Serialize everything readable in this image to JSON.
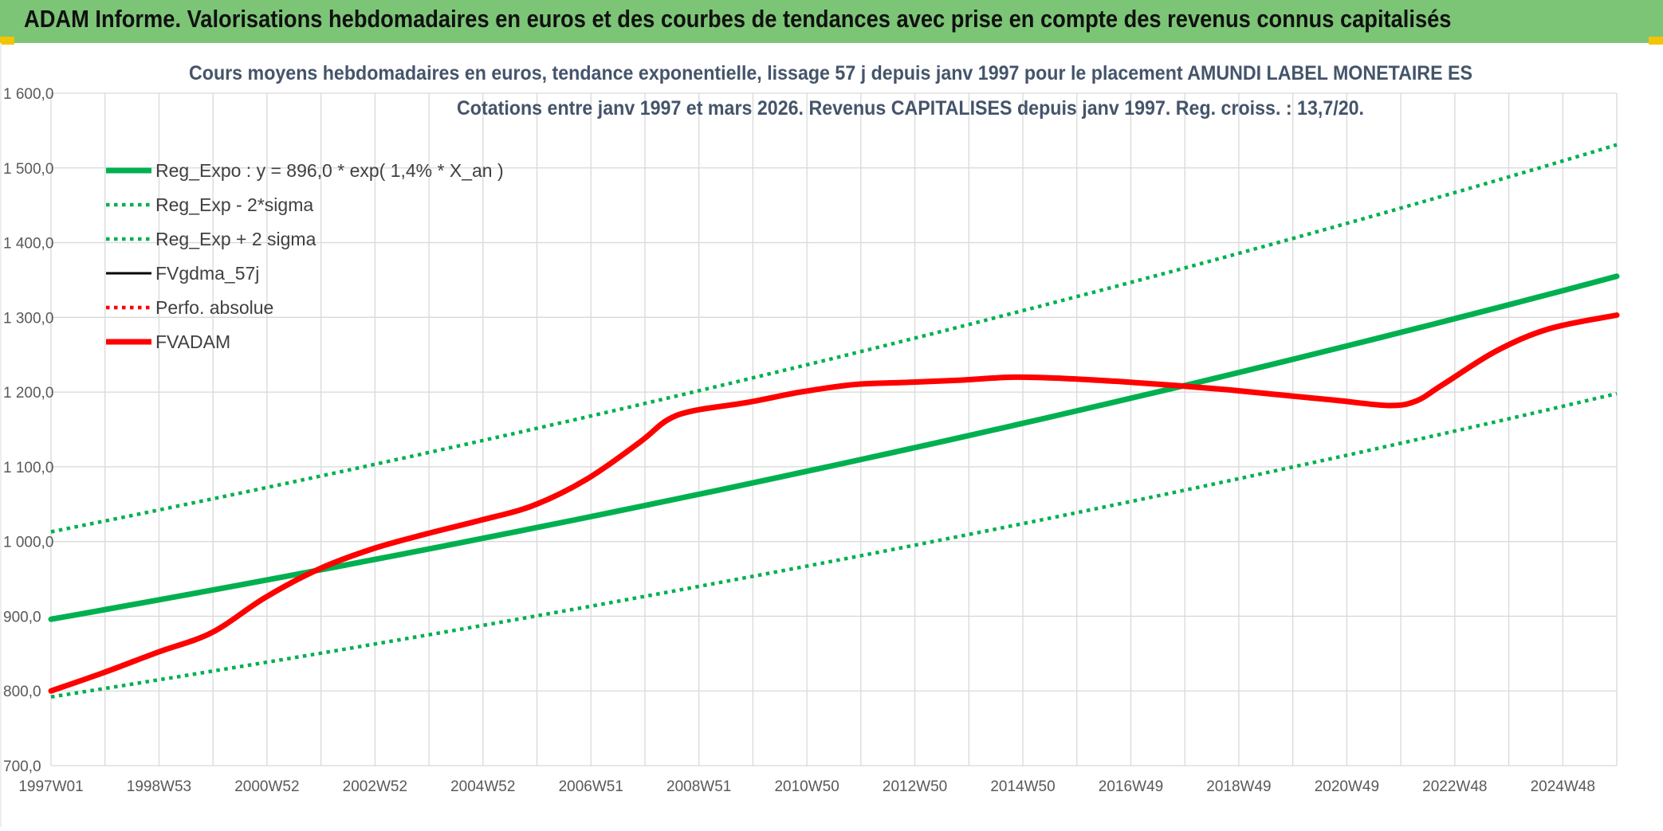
{
  "header": {
    "title": "ADAM Informe. Valorisations hebdomadaires en euros et des courbes de tendances avec prise en compte des revenus connus capitalisés"
  },
  "colors": {
    "header_bg": "#7cc576",
    "accent_corner": "#f2c500",
    "reg_expo": "#00b050",
    "fvadam": "#ff0000",
    "fvgdma": "#000000",
    "perfo": "#ff0000"
  },
  "chart_data": {
    "type": "line",
    "title": "Cours moyens hebdomadaires en euros, tendance exponentielle, lissage 57 j depuis janv 1997 pour le placement AMUNDI LABEL MONETAIRE ES",
    "subtitle": "Cotations entre janv 1997 et mars 2026. Revenus CAPITALISES depuis janv 1997. Reg. croiss. : 13,7/20.",
    "xlabel": "",
    "ylabel": "",
    "x_ticks": [
      "1997W01",
      "1998W53",
      "2000W52",
      "2002W52",
      "2004W52",
      "2006W51",
      "2008W51",
      "2010W50",
      "2012W50",
      "2014W50",
      "2016W49",
      "2018W49",
      "2020W49",
      "2022W48",
      "2024W48"
    ],
    "x_range": [
      1997.0,
      2026.25
    ],
    "ylim": [
      700,
      1600
    ],
    "y_ticks": [
      "700,0",
      "800,0",
      "900,0",
      "1 000,0",
      "1 100,0",
      "1 200,0",
      "1 300,0",
      "1 400,0",
      "1 500,0",
      "1 600,0"
    ],
    "grid": true,
    "legend_position": "top-left",
    "series": [
      {
        "name": "Reg_Expo : y = 896,0 * exp( 1,4% *  X_an )",
        "color": "#00b050",
        "style": "solid-thick",
        "x": [
          1997.0,
          2026.25
        ],
        "values": [
          896,
          1355
        ]
      },
      {
        "name": "Reg_Exp - 2*sigma",
        "color": "#00b050",
        "style": "dotted",
        "x": [
          1997.0,
          2026.25
        ],
        "values": [
          792,
          1198
        ]
      },
      {
        "name": "Reg_Exp + 2 sigma",
        "color": "#00b050",
        "style": "dotted",
        "x": [
          1997.0,
          2026.25
        ],
        "values": [
          1013,
          1531
        ]
      },
      {
        "name": "FVgdma_57j",
        "color": "#000000",
        "style": "solid",
        "x": [],
        "values": []
      },
      {
        "name": "Perfo. absolue",
        "color": "#ff0000",
        "style": "dotted",
        "x": [],
        "values": []
      },
      {
        "name": "FVADAM",
        "color": "#ff0000",
        "style": "solid-thick",
        "x": [
          1997.0,
          1998.0,
          1999.0,
          2000.0,
          2001.0,
          2002.0,
          2003.0,
          2004.0,
          2005.0,
          2006.0,
          2007.0,
          2008.0,
          2008.5,
          2009.0,
          2010.0,
          2011.0,
          2012.0,
          2013.0,
          2014.0,
          2015.0,
          2016.0,
          2017.0,
          2018.0,
          2019.0,
          2020.0,
          2021.0,
          2022.0,
          2022.5,
          2023.0,
          2024.0,
          2025.0,
          2026.25
        ],
        "values": [
          800,
          825,
          852,
          878,
          925,
          963,
          990,
          1010,
          1028,
          1048,
          1083,
          1133,
          1162,
          1175,
          1186,
          1200,
          1210,
          1213,
          1216,
          1220,
          1218,
          1214,
          1209,
          1203,
          1196,
          1189,
          1182,
          1188,
          1210,
          1255,
          1285,
          1303
        ]
      }
    ]
  }
}
